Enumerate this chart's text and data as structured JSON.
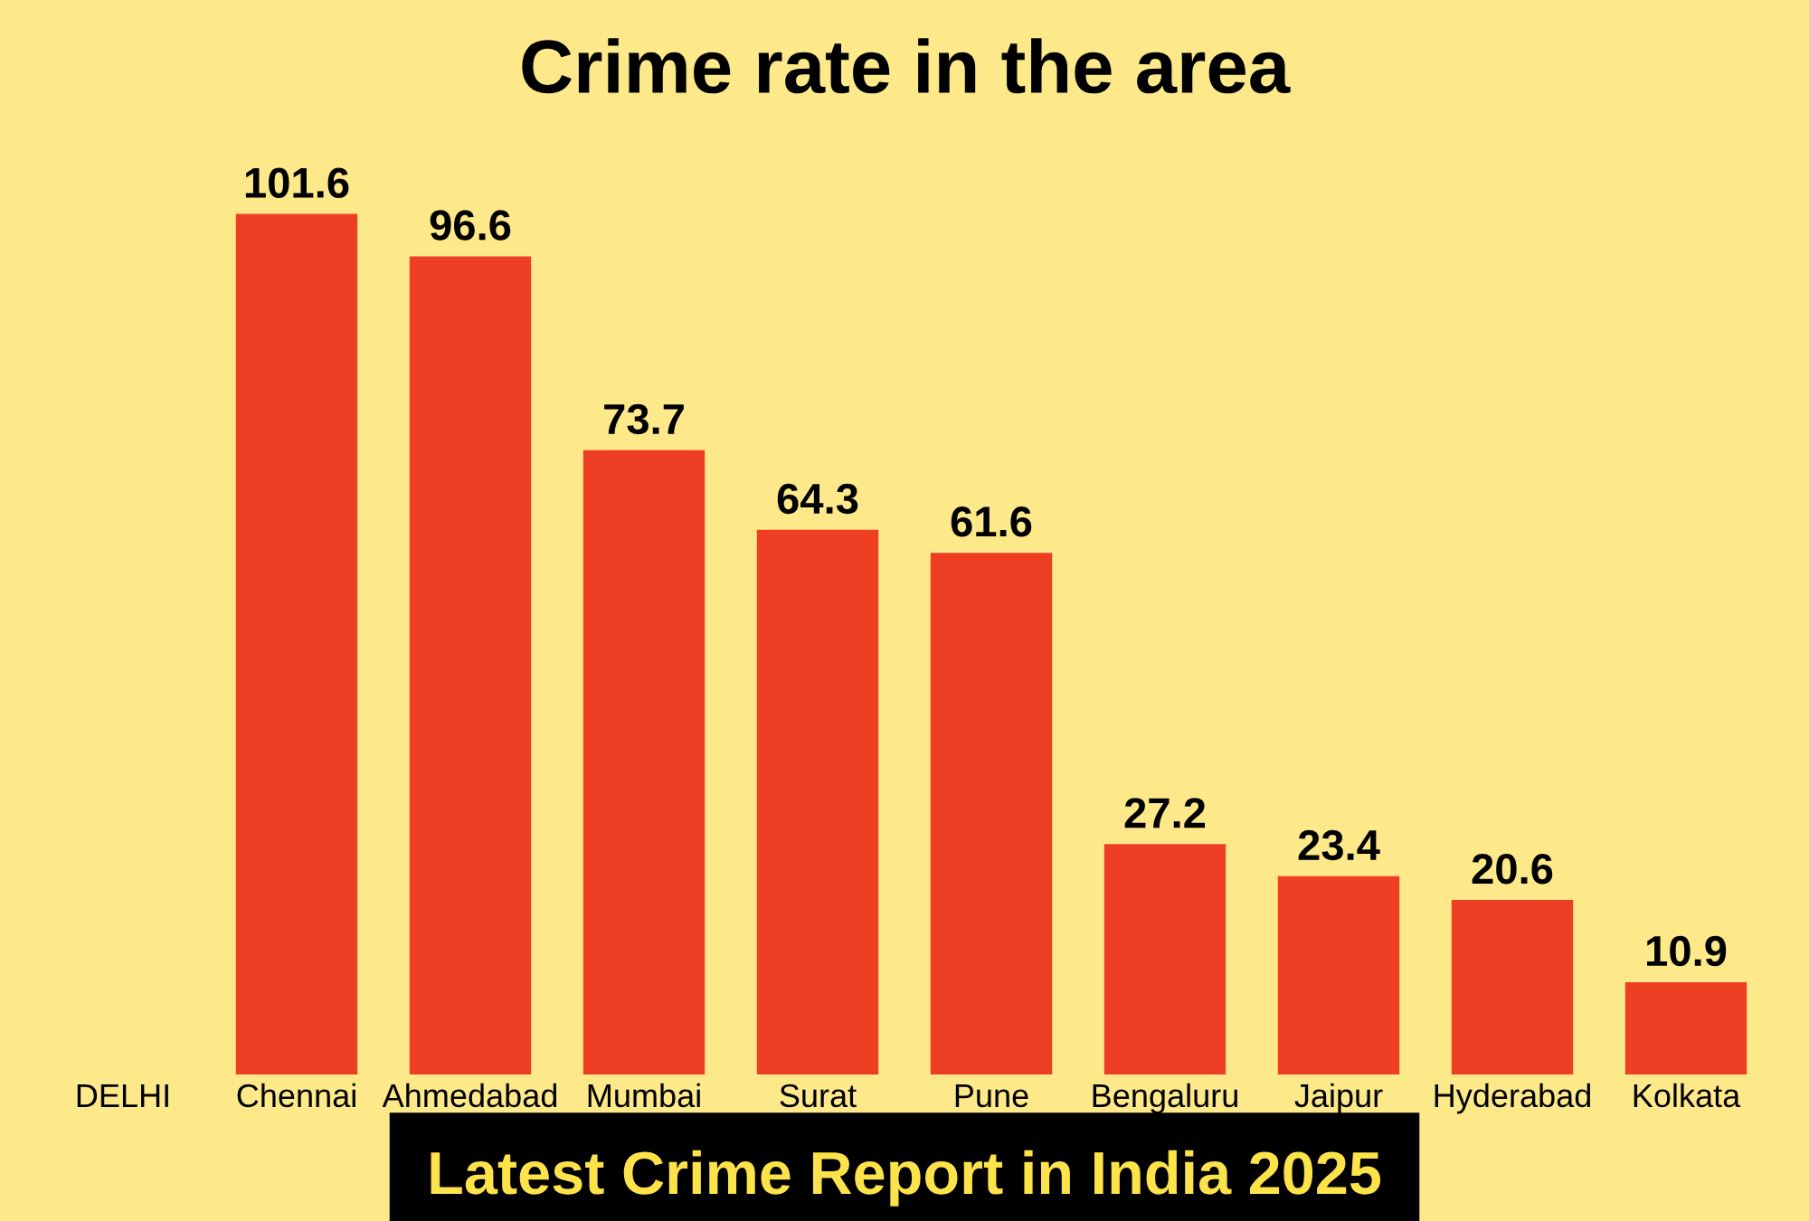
{
  "chart_data": {
    "type": "bar",
    "title": "Crime rate in the area",
    "categories": [
      "DELHI",
      "Chennai",
      "Ahmedabad",
      "Mumbai",
      "Surat",
      "Pune",
      "Bengaluru",
      "Jaipur",
      "Hyderabad",
      "Kolkata"
    ],
    "values": [
      null,
      101.6,
      96.6,
      73.7,
      64.3,
      61.6,
      27.2,
      23.4,
      20.6,
      10.9
    ],
    "color": "#ee3f24",
    "data_labels": true,
    "annotations": [
      "Latest Crime Report in India 2025"
    ]
  }
}
